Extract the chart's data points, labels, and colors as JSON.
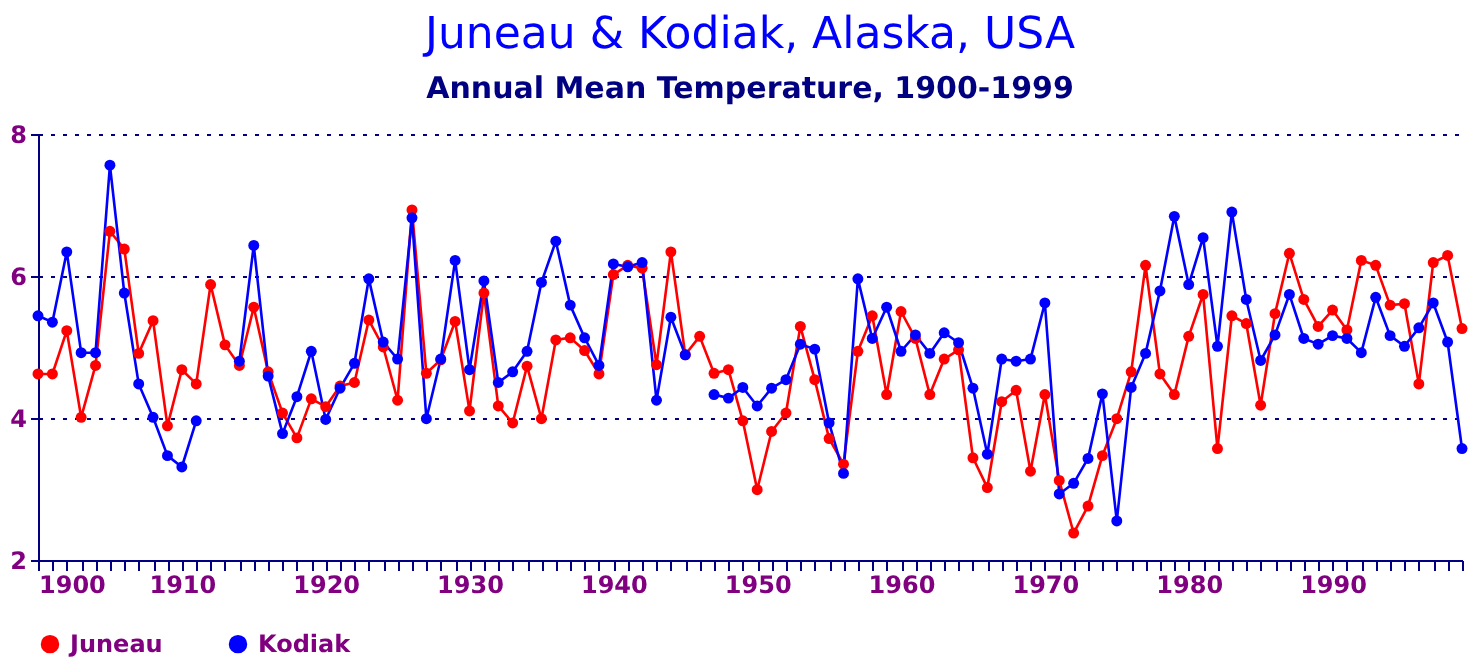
{
  "chart_data": {
    "type": "line",
    "title": "Juneau & Kodiak, Alaska, USA",
    "subtitle": "Annual Mean Temperature, 1900-1999",
    "x": [
      1900,
      1901,
      1902,
      1903,
      1904,
      1905,
      1906,
      1907,
      1908,
      1909,
      1910,
      1911,
      1912,
      1913,
      1914,
      1915,
      1916,
      1917,
      1918,
      1919,
      1920,
      1921,
      1922,
      1923,
      1924,
      1925,
      1926,
      1927,
      1928,
      1929,
      1930,
      1931,
      1932,
      1933,
      1934,
      1935,
      1936,
      1937,
      1938,
      1939,
      1940,
      1941,
      1942,
      1943,
      1944,
      1945,
      1946,
      1947,
      1948,
      1949,
      1950,
      1951,
      1952,
      1953,
      1954,
      1955,
      1956,
      1957,
      1958,
      1959,
      1960,
      1961,
      1962,
      1963,
      1964,
      1965,
      1966,
      1967,
      1968,
      1969,
      1970,
      1971,
      1972,
      1973,
      1974,
      1975,
      1976,
      1977,
      1978,
      1979,
      1980,
      1981,
      1982,
      1983,
      1984,
      1985,
      1986,
      1987,
      1988,
      1989,
      1990,
      1991,
      1992,
      1993,
      1994,
      1995,
      1996,
      1997,
      1998,
      1999
    ],
    "series": [
      {
        "name": "Juneau",
        "color": "#ff0000",
        "values": [
          4.62,
          4.62,
          5.23,
          4.01,
          4.74,
          6.63,
          6.38,
          4.91,
          5.37,
          3.89,
          4.68,
          4.48,
          5.88,
          5.03,
          4.74,
          5.56,
          4.65,
          4.07,
          3.72,
          4.27,
          4.16,
          4.45,
          4.5,
          5.38,
          5.0,
          4.25,
          6.93,
          4.63,
          4.82,
          5.36,
          4.1,
          5.76,
          4.17,
          3.93,
          4.73,
          3.99,
          5.1,
          5.13,
          4.95,
          4.62,
          6.02,
          6.15,
          6.11,
          4.75,
          6.34,
          4.89,
          5.15,
          4.63,
          4.68,
          3.96,
          2.99,
          3.81,
          4.07,
          5.29,
          4.54,
          3.71,
          3.35,
          4.94,
          5.44,
          4.33,
          5.5,
          5.12,
          4.33,
          4.83,
          4.96,
          3.44,
          3.02,
          4.23,
          4.39,
          3.25,
          4.33,
          3.12,
          2.38,
          2.76,
          3.47,
          3.99,
          4.65,
          6.15,
          4.62,
          4.33,
          5.15,
          5.74,
          3.57,
          5.44,
          5.33,
          4.18,
          5.47,
          6.32,
          5.67,
          5.29,
          5.52,
          5.24,
          6.22,
          6.15,
          5.59,
          5.61,
          4.48,
          6.19,
          6.29,
          5.26
        ]
      },
      {
        "name": "Kodiak",
        "color": "#0000ff",
        "values": [
          5.44,
          5.35,
          6.34,
          4.92,
          4.92,
          7.56,
          5.76,
          4.48,
          4.01,
          3.47,
          3.31,
          3.96,
          null,
          null,
          4.8,
          6.43,
          4.59,
          3.78,
          4.3,
          4.94,
          3.98,
          4.42,
          4.77,
          5.96,
          5.07,
          4.83,
          6.82,
          3.99,
          4.83,
          6.22,
          4.68,
          5.93,
          4.5,
          4.65,
          4.94,
          5.91,
          6.49,
          5.59,
          5.13,
          4.74,
          6.17,
          6.13,
          6.19,
          4.25,
          5.42,
          4.89,
          null,
          4.33,
          4.28,
          4.43,
          4.17,
          4.42,
          4.54,
          5.04,
          4.97,
          3.93,
          3.22,
          5.96,
          5.12,
          5.56,
          4.94,
          5.17,
          4.91,
          5.2,
          5.06,
          4.42,
          3.49,
          4.83,
          4.8,
          4.83,
          5.62,
          2.93,
          3.08,
          3.43,
          4.34,
          2.55,
          4.43,
          4.91,
          5.79,
          6.84,
          5.88,
          6.54,
          5.01,
          6.9,
          5.67,
          4.81,
          5.17,
          5.74,
          5.12,
          5.04,
          5.16,
          5.12,
          4.92,
          5.7,
          5.16,
          5.01,
          5.27,
          5.62,
          5.07,
          3.57
        ]
      }
    ],
    "xlim": [
      1900,
      1999
    ],
    "xticks": [
      1900,
      {
        "value": 1901,
        "label": null
      },
      {
        "value": 1902,
        "label": null
      },
      {
        "value": 1903,
        "label": null
      },
      {
        "value": 1904,
        "label": null
      },
      {
        "value": 1905,
        "label": null
      },
      {
        "value": 1906,
        "label": null
      },
      {
        "value": 1907,
        "label": null
      },
      {
        "value": 1908,
        "label": null
      },
      {
        "value": 1909,
        "label": null
      },
      1910,
      {
        "value": 1911,
        "label": null
      },
      {
        "value": 1912,
        "label": null
      },
      {
        "value": 1913,
        "label": null
      },
      {
        "value": 1914,
        "label": null
      },
      {
        "value": 1915,
        "label": null
      },
      {
        "value": 1916,
        "label": null
      },
      {
        "value": 1917,
        "label": null
      },
      {
        "value": 1918,
        "label": null
      },
      {
        "value": 1919,
        "label": null
      },
      1920,
      {
        "value": 1921,
        "label": null
      },
      {
        "value": 1922,
        "label": null
      },
      {
        "value": 1923,
        "label": null
      },
      {
        "value": 1924,
        "label": null
      },
      {
        "value": 1925,
        "label": null
      },
      {
        "value": 1926,
        "label": null
      },
      {
        "value": 1927,
        "label": null
      },
      {
        "value": 1928,
        "label": null
      },
      {
        "value": 1929,
        "label": null
      },
      1930,
      {
        "value": 1931,
        "label": null
      },
      {
        "value": 1932,
        "label": null
      },
      {
        "value": 1933,
        "label": null
      },
      {
        "value": 1934,
        "label": null
      },
      {
        "value": 1935,
        "label": null
      },
      {
        "value": 1936,
        "label": null
      },
      {
        "value": 1937,
        "label": null
      },
      {
        "value": 1938,
        "label": null
      },
      {
        "value": 1939,
        "label": null
      },
      1940,
      {
        "value": 1941,
        "label": null
      },
      {
        "value": 1942,
        "label": null
      },
      {
        "value": 1943,
        "label": null
      },
      {
        "value": 1944,
        "label": null
      },
      {
        "value": 1945,
        "label": null
      },
      {
        "value": 1946,
        "label": null
      },
      {
        "value": 1947,
        "label": null
      },
      {
        "value": 1948,
        "label": null
      },
      {
        "value": 1949,
        "label": null
      },
      1950,
      {
        "value": 1951,
        "label": null
      },
      {
        "value": 1952,
        "label": null
      },
      {
        "value": 1953,
        "label": null
      },
      {
        "value": 1954,
        "label": null
      },
      {
        "value": 1955,
        "label": null
      },
      {
        "value": 1956,
        "label": null
      },
      {
        "value": 1957,
        "label": null
      },
      {
        "value": 1958,
        "label": null
      },
      {
        "value": 1959,
        "label": null
      },
      1960,
      {
        "value": 1961,
        "label": null
      },
      {
        "value": 1962,
        "label": null
      },
      {
        "value": 1963,
        "label": null
      },
      {
        "value": 1964,
        "label": null
      },
      {
        "value": 1965,
        "label": null
      },
      {
        "value": 1966,
        "label": null
      },
      {
        "value": 1967,
        "label": null
      },
      {
        "value": 1968,
        "label": null
      },
      {
        "value": 1969,
        "label": null
      },
      1970,
      {
        "value": 1971,
        "label": null
      },
      {
        "value": 1972,
        "label": null
      },
      {
        "value": 1973,
        "label": null
      },
      {
        "value": 1974,
        "label": null
      },
      {
        "value": 1975,
        "label": null
      },
      {
        "value": 1976,
        "label": null
      },
      {
        "value": 1977,
        "label": null
      },
      {
        "value": 1978,
        "label": null
      },
      {
        "value": 1979,
        "label": null
      },
      1980,
      {
        "value": 1981,
        "label": null
      },
      {
        "value": 1982,
        "label": null
      },
      {
        "value": 1983,
        "label": null
      },
      {
        "value": 1984,
        "label": null
      },
      {
        "value": 1985,
        "label": null
      },
      {
        "value": 1986,
        "label": null
      },
      {
        "value": 1987,
        "label": null
      },
      {
        "value": 1988,
        "label": null
      },
      {
        "value": 1989,
        "label": null
      },
      1990,
      {
        "value": 1991,
        "label": null
      },
      {
        "value": 1992,
        "label": null
      },
      {
        "value": 1993,
        "label": null
      },
      {
        "value": 1994,
        "label": null
      },
      {
        "value": 1995,
        "label": null
      },
      {
        "value": 1996,
        "label": null
      },
      {
        "value": 1997,
        "label": null
      },
      {
        "value": 1998,
        "label": null
      },
      {
        "value": 1999,
        "label": null
      }
    ],
    "ylim": [
      2,
      8
    ],
    "yticks": [
      2,
      4,
      6,
      8
    ],
    "grid": "y",
    "legend": "bottom",
    "marker": "circle",
    "line_style": "solid"
  }
}
